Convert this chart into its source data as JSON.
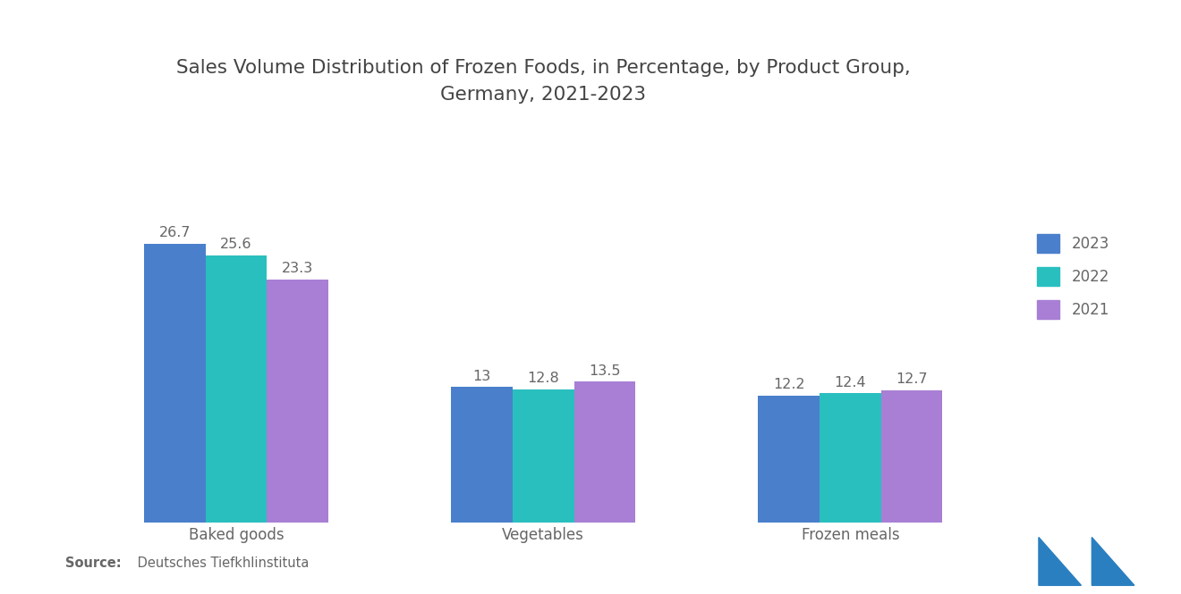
{
  "title": "Sales Volume Distribution of Frozen Foods, in Percentage, by Product Group,\nGermany, 2021-2023",
  "categories": [
    "Baked goods",
    "Vegetables",
    "Frozen meals"
  ],
  "years": [
    "2023",
    "2022",
    "2021"
  ],
  "values": {
    "2023": [
      26.7,
      13.0,
      12.2
    ],
    "2022": [
      25.6,
      12.8,
      12.4
    ],
    "2021": [
      23.3,
      13.5,
      12.7
    ]
  },
  "colors": {
    "2023": "#4a7fcc",
    "2022": "#2abfbf",
    "2021": "#a87fd4"
  },
  "bar_width": 0.2,
  "ylim": [
    0,
    33
  ],
  "label_fontsize": 11.5,
  "tick_fontsize": 12,
  "title_fontsize": 15.5,
  "legend_fontsize": 12,
  "source_bold": "Source:",
  "source_text": " Deutsches Tiefkhlinstituta",
  "background_color": "#ffffff",
  "label_color": "#666666",
  "title_color": "#444444",
  "logo_color": "#2a7fc0"
}
